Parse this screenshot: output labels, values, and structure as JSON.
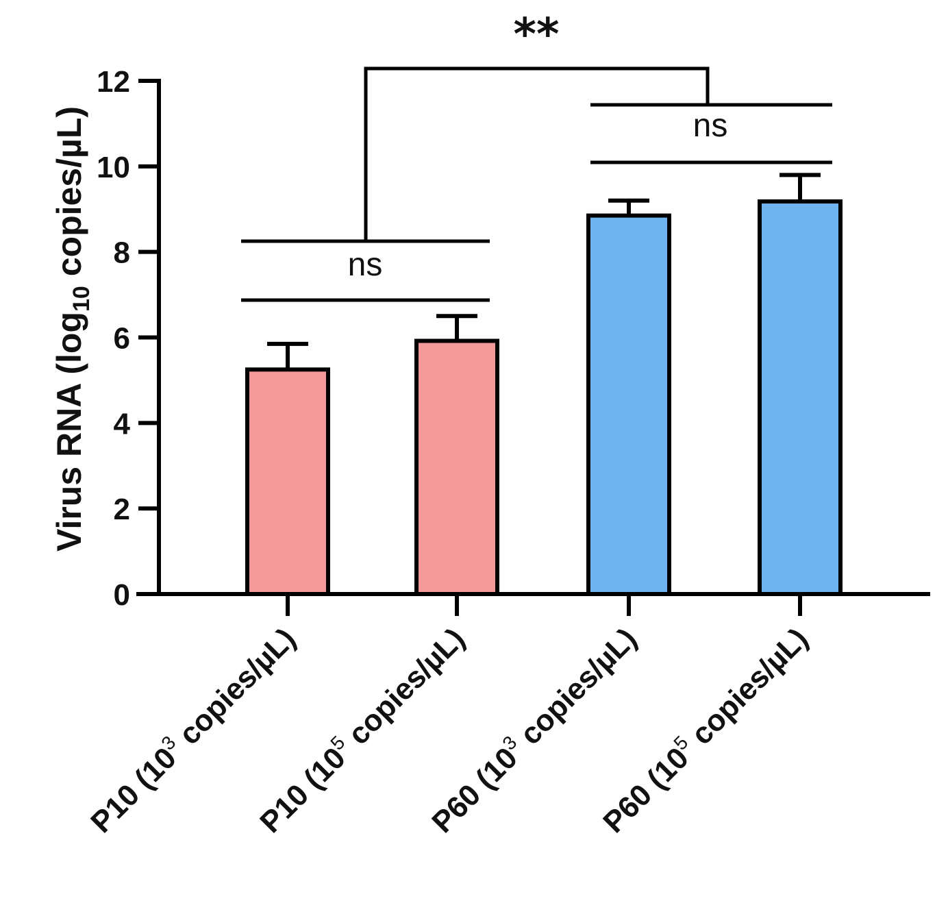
{
  "chart_data": {
    "type": "bar",
    "title": "",
    "ylabel": {
      "main": "Virus RNA (log",
      "sub": "10",
      "rest": " copies/µL)"
    },
    "xlabel": "",
    "ylim": [
      0,
      12
    ],
    "yticks": [
      0,
      2,
      4,
      6,
      8,
      10,
      12
    ],
    "categories": [
      {
        "name": "P10",
        "base": "P10 (10",
        "exp": "3",
        "unit": " copies/µL)"
      },
      {
        "name": "P10",
        "base": "P10 (10",
        "exp": "5",
        "unit": " copies/µL)"
      },
      {
        "name": "P60",
        "base": "P60 (10",
        "exp": "3",
        "unit": " copies/µL)"
      },
      {
        "name": "P60",
        "base": "P60 (10",
        "exp": "5",
        "unit": " copies/µL)"
      }
    ],
    "values": [
      5.25,
      5.92,
      8.85,
      9.18
    ],
    "errors": [
      0.6,
      0.58,
      0.35,
      0.62
    ],
    "colors": [
      "#f4999a",
      "#f4999a",
      "#6fb3f0",
      "#6fb3f0"
    ],
    "comparisons": [
      {
        "label": "ns",
        "bars": [
          0,
          1
        ]
      },
      {
        "label": "ns",
        "bars": [
          2,
          3
        ]
      },
      {
        "label": "**",
        "groups": [
          [
            0,
            1
          ],
          [
            2,
            3
          ]
        ]
      }
    ]
  }
}
